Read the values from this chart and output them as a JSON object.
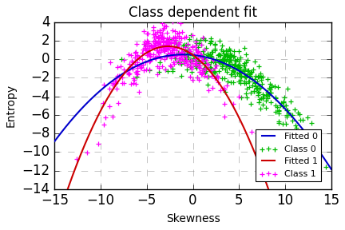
{
  "title": "Class dependent fit",
  "xlabel": "Skewness",
  "ylabel": "Entropy",
  "xlim": [
    -15,
    15
  ],
  "ylim": [
    -14,
    4
  ],
  "xticks": [
    -15,
    -10,
    -5,
    0,
    5,
    10,
    15
  ],
  "yticks": [
    -14,
    -12,
    -10,
    -8,
    -6,
    -4,
    -2,
    0,
    2,
    4
  ],
  "poly0": [
    -0.048,
    -0.1,
    0.45
  ],
  "poly1": [
    -0.13,
    -0.7,
    0.45
  ],
  "class0_x_mean": 4.5,
  "class0_x_std": 3.8,
  "class0_n": 350,
  "class0_color": "#00bb00",
  "class1_x_mean": -2.5,
  "class1_x_std": 3.2,
  "class1_n": 350,
  "class1_color": "#ff00ff",
  "fitted0_color": "#0000cc",
  "fitted1_color": "#cc0000",
  "noise0_std": 1.1,
  "noise1_std": 1.3,
  "legend_entries": [
    "Fitted 0",
    "Class 0",
    "Fitted 1",
    "Class 1"
  ],
  "background_color": "#ffffff",
  "grid_color": "#888888",
  "figsize": [
    4.32,
    2.88
  ],
  "dpi": 100
}
